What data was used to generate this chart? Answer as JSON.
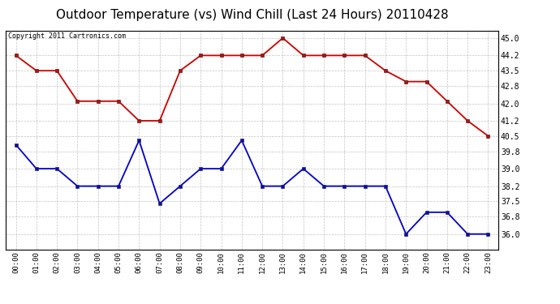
{
  "title": "Outdoor Temperature (vs) Wind Chill (Last 24 Hours) 20110428",
  "copyright_text": "Copyright 2011 Cartronics.com",
  "hours": [
    "00:00",
    "01:00",
    "02:00",
    "03:00",
    "04:00",
    "05:00",
    "06:00",
    "07:00",
    "08:00",
    "09:00",
    "10:00",
    "11:00",
    "12:00",
    "13:00",
    "14:00",
    "15:00",
    "16:00",
    "17:00",
    "18:00",
    "19:00",
    "20:00",
    "21:00",
    "22:00",
    "23:00"
  ],
  "temp": [
    44.2,
    43.5,
    43.5,
    42.1,
    42.1,
    42.1,
    41.2,
    41.2,
    43.5,
    44.2,
    44.2,
    44.2,
    44.2,
    45.0,
    44.2,
    44.2,
    44.2,
    44.2,
    43.5,
    43.0,
    43.0,
    42.1,
    41.2,
    40.5
  ],
  "wind_chill": [
    40.1,
    39.0,
    39.0,
    38.2,
    38.2,
    38.2,
    40.3,
    37.4,
    38.2,
    39.0,
    39.0,
    40.3,
    38.2,
    38.2,
    39.0,
    38.2,
    38.2,
    38.2,
    38.2,
    36.0,
    37.0,
    37.0,
    36.0,
    36.0
  ],
  "temp_color": "#cc0000",
  "wind_chill_color": "#0000cc",
  "bg_color": "#ffffff",
  "grid_color": "#aaaaaa",
  "ylim_min": 35.3,
  "ylim_max": 45.35,
  "yticks": [
    36.0,
    36.8,
    37.5,
    38.2,
    39.0,
    39.8,
    40.5,
    41.2,
    42.0,
    42.8,
    43.5,
    44.2,
    45.0
  ],
  "title_fontsize": 11,
  "marker": "s",
  "marker_size": 3,
  "linewidth": 1.3
}
